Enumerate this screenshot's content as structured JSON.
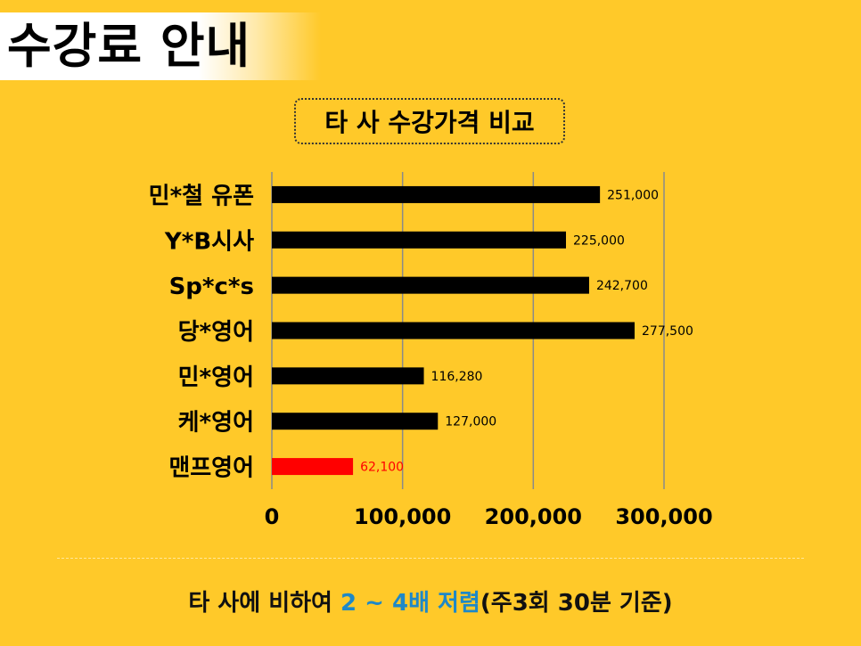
{
  "header": {
    "title": "수강료 안내"
  },
  "chart_data": {
    "type": "bar",
    "orientation": "horizontal",
    "title": "타 사 수강가격 비교",
    "categories": [
      "민*철 유폰",
      "Y*B시사",
      "Sp*c*s",
      "당*영어",
      "민*영어",
      "케*영어",
      "맨프영어"
    ],
    "values": [
      251000,
      225000,
      242700,
      277500,
      116280,
      127000,
      62100
    ],
    "value_labels": [
      "251,000",
      "225,000",
      "242,700",
      "277,500",
      "116,280",
      "127,000",
      "62,100"
    ],
    "x_ticks": [
      "0",
      "100,000",
      "200,000",
      "300,000"
    ],
    "xlim": [
      0,
      300000
    ],
    "grid": "vertical",
    "bar_color": "#000000",
    "highlight_category": "맨프영어",
    "highlight_color": "#FF0000"
  },
  "footer": {
    "prefix": "타 사에 비하여 ",
    "highlight": "2 ~ 4배 저렴",
    "suffix": "(주3회 30분 기준)"
  },
  "colors": {
    "background": "#FFC929",
    "accent": "#1E88C7"
  }
}
